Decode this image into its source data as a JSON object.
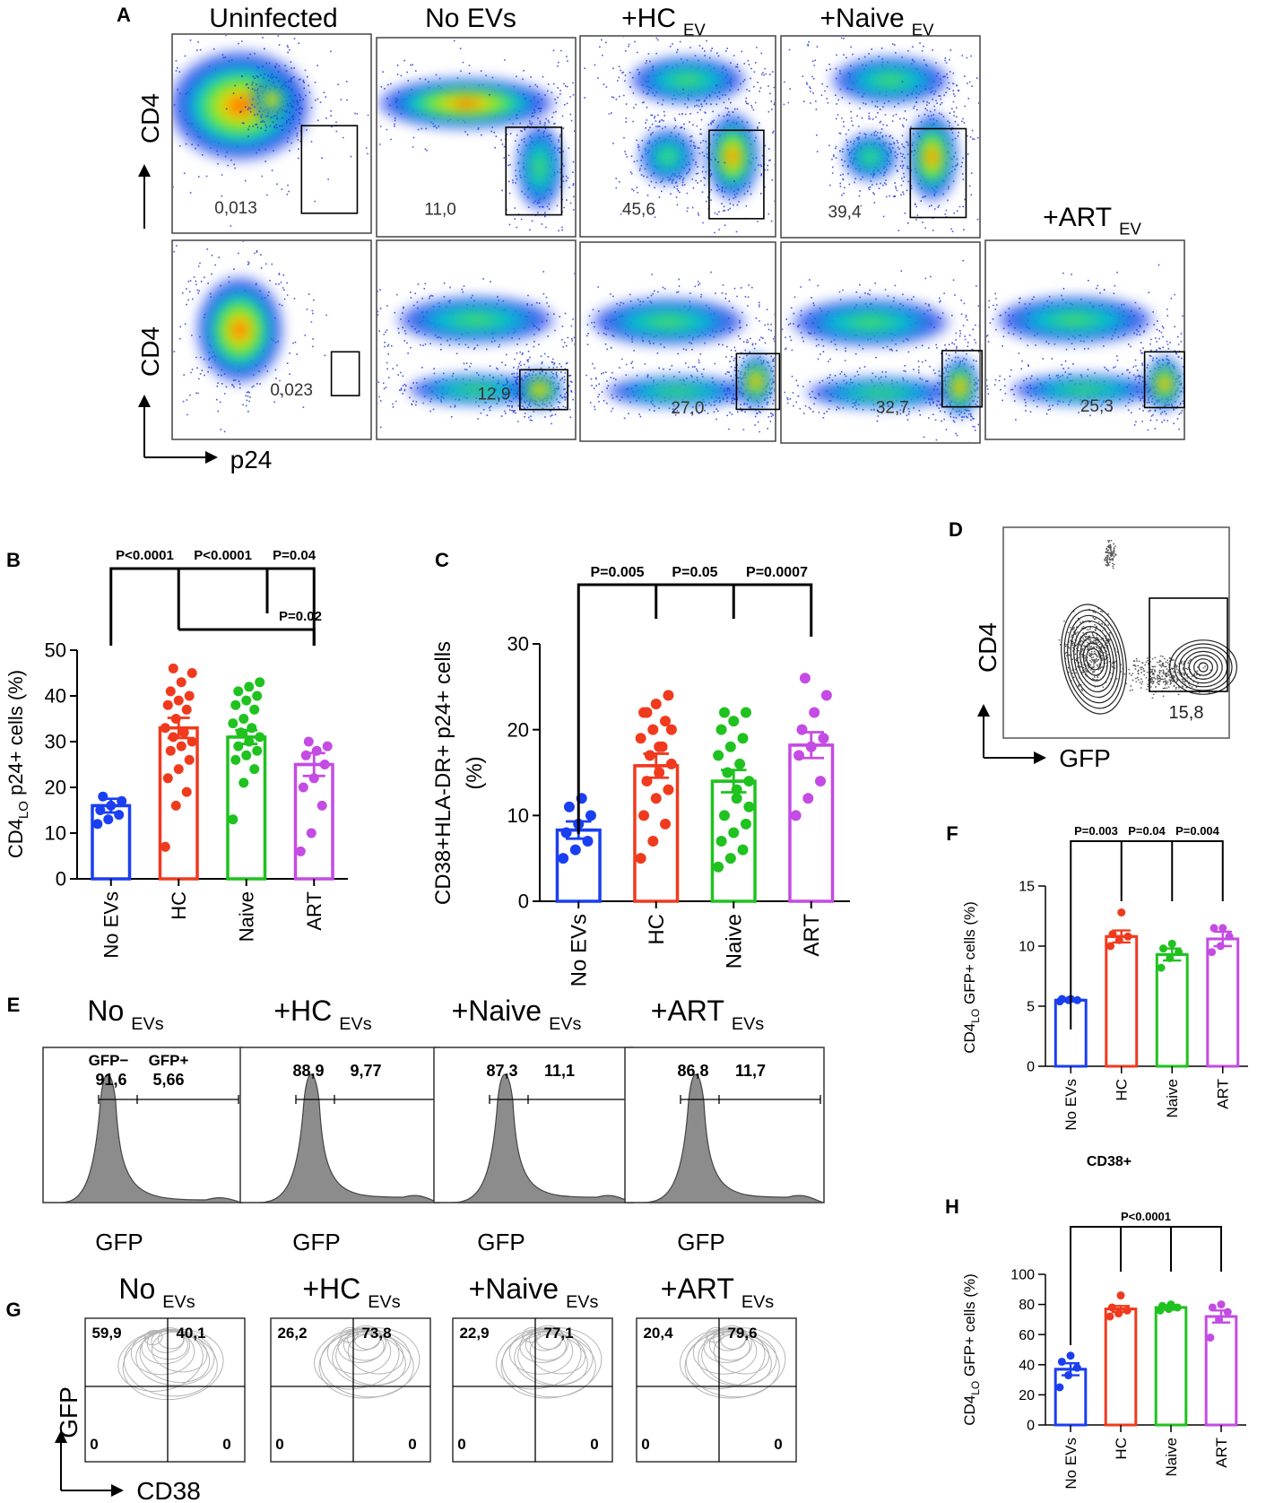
{
  "figure": {
    "panel_letters": [
      "A",
      "B",
      "C",
      "D",
      "E",
      "F",
      "G",
      "H"
    ],
    "colors": {
      "no_evs": "#1a3ff0",
      "hc": "#f03a1e",
      "naive": "#1fc21f",
      "art": "#c44be3",
      "gray": "#7a7a7a",
      "black": "#000000"
    }
  },
  "chart_data": [
    {
      "panel": "A",
      "type": "scatter",
      "axes": {
        "y": "CD4",
        "x": "p24"
      },
      "top_titles": [
        {
          "main": "Uninfected",
          "sub": ""
        },
        {
          "main": "No EVs",
          "sub": ""
        },
        {
          "main": "+HC",
          "sub": "EV"
        },
        {
          "main": "+Naive",
          "sub": "EV"
        },
        {
          "main": "+ART",
          "sub": "EV"
        }
      ],
      "row1_values": [
        "0,013",
        "11,0",
        "45,6",
        "39,4"
      ],
      "row2_values": [
        "0,023",
        "12,9",
        "27,0",
        "32,7",
        "25,3"
      ]
    },
    {
      "panel": "B",
      "type": "bar",
      "ylabel_pre": "CD4",
      "ylabel_sub": "LO",
      "ylabel_post": " p24+ cells (%)",
      "ylim": [
        0,
        50
      ],
      "yticks": [
        "0",
        "10",
        "20",
        "30",
        "40",
        "50"
      ],
      "categories": [
        "No EVs",
        "HC",
        "Naive",
        "ART"
      ],
      "means": [
        16,
        33,
        31,
        25
      ],
      "sem": [
        1.5,
        2.2,
        1.5,
        2.5
      ],
      "points": [
        [
          12,
          13,
          14,
          15,
          16,
          17,
          18
        ],
        [
          7,
          16,
          19,
          22,
          24,
          26,
          28,
          29,
          30,
          31,
          32,
          33,
          35,
          37,
          38,
          39,
          40,
          41,
          43,
          45,
          46
        ],
        [
          13,
          21,
          24,
          26,
          27,
          28,
          29,
          30,
          31,
          32,
          33,
          34,
          35,
          37,
          38,
          39,
          40,
          41,
          42,
          43
        ],
        [
          6,
          10,
          16,
          20,
          22,
          25,
          27,
          28,
          29,
          30
        ]
      ],
      "comparisons": [
        "P<0.0001",
        "P<0.0001",
        "P=0.04",
        "P=0.02"
      ]
    },
    {
      "panel": "C",
      "type": "bar",
      "ylabel_line1": "CD38+HLA-DR+ p24+ cells",
      "ylabel_line2": "(%)",
      "ylim": [
        0,
        30
      ],
      "yticks": [
        "0",
        "10",
        "20",
        "30"
      ],
      "categories": [
        "No EVs",
        "HC",
        "Naive",
        "ART"
      ],
      "means": [
        8.3,
        15.8,
        14,
        18.2
      ],
      "sem": [
        1,
        1.4,
        1.3,
        1.5
      ],
      "points": [
        [
          5,
          6,
          7,
          8,
          9,
          10,
          11,
          12
        ],
        [
          5,
          7,
          9,
          10,
          12,
          13,
          14,
          15,
          16,
          17,
          18,
          19,
          20,
          21,
          22,
          23,
          24,
          22,
          18,
          20
        ],
        [
          4,
          5,
          6,
          7,
          8,
          9,
          10,
          12,
          14,
          15,
          16,
          17,
          18,
          19,
          20,
          21,
          22,
          22,
          13,
          11
        ],
        [
          10,
          12,
          14,
          17,
          18,
          19,
          20,
          22,
          24,
          26
        ]
      ],
      "comparisons": [
        "P=0.005",
        "P=0.05",
        "P=0.0007"
      ]
    },
    {
      "panel": "D",
      "type": "scatter",
      "axes": {
        "y": "CD4",
        "x": "GFP"
      },
      "gate_value": "15,8"
    },
    {
      "panel": "E",
      "type": "area",
      "xlabel": "GFP",
      "titles": [
        {
          "main": "No",
          "sub": "EVs"
        },
        {
          "main": "+HC",
          "sub": "EVs"
        },
        {
          "main": "+Naive",
          "sub": "EVs"
        },
        {
          "main": "+ART",
          "sub": "EVs"
        }
      ],
      "gate_labels": {
        "neg": "GFP−",
        "pos": "GFP+"
      },
      "gfp_neg": [
        "91,6",
        "88,9",
        "87,3",
        "86,8"
      ],
      "gfp_pos": [
        "5,66",
        "9,77",
        "11,1",
        "11,7"
      ]
    },
    {
      "panel": "F",
      "type": "bar",
      "ylabel_pre": "CD4",
      "ylabel_sub": "LO",
      "ylabel_post": " GFP+ cells (%)",
      "ylim": [
        0,
        15
      ],
      "yticks": [
        "0",
        "5",
        "10",
        "15"
      ],
      "categories": [
        "No EVs",
        "HC",
        "Naive",
        "ART"
      ],
      "means": [
        5.5,
        10.8,
        9.3,
        10.6
      ],
      "sem": [
        0.1,
        0.5,
        0.5,
        0.6
      ],
      "points": [
        [
          5.4,
          5.5,
          5.5,
          5.6,
          5.6
        ],
        [
          10.0,
          10.5,
          10.8,
          11.0,
          12.8
        ],
        [
          8.2,
          9.0,
          9.5,
          9.8,
          10.2
        ],
        [
          9.5,
          10.0,
          10.8,
          11.5,
          11.5
        ]
      ],
      "comparisons": [
        "P=0.003",
        "P=0.04",
        "P=0.004"
      ]
    },
    {
      "panel": "G",
      "type": "scatter",
      "axes": {
        "y": "GFP",
        "x": "CD38"
      },
      "titles": [
        {
          "main": "No",
          "sub": "EVs"
        },
        {
          "main": "+HC",
          "sub": "EVs"
        },
        {
          "main": "+Naive",
          "sub": "EVs"
        },
        {
          "main": "+ART",
          "sub": "EVs"
        }
      ],
      "quadrants": [
        {
          "ul": "59,9",
          "ur": "40,1",
          "ll": "0",
          "lr": "0"
        },
        {
          "ul": "26,2",
          "ur": "73,8",
          "ll": "0",
          "lr": "0"
        },
        {
          "ul": "22,9",
          "ur": "77,1",
          "ll": "0",
          "lr": "0"
        },
        {
          "ul": "20,4",
          "ur": "79,6",
          "ll": "0",
          "lr": "0"
        }
      ]
    },
    {
      "panel": "H",
      "type": "bar",
      "title": "CD38+",
      "ylabel_pre": "CD4",
      "ylabel_sub": "LO",
      "ylabel_post": " GFP+ cells (%)",
      "ylim": [
        0,
        100
      ],
      "yticks": [
        "0",
        "20",
        "40",
        "60",
        "80",
        "100"
      ],
      "categories": [
        "No EVs",
        "HC",
        "Naive",
        "ART"
      ],
      "means": [
        37,
        77,
        78,
        72
      ],
      "sem": [
        4,
        2,
        1.5,
        4
      ],
      "points": [
        [
          25,
          33,
          38,
          42,
          46
        ],
        [
          72,
          74,
          76,
          78,
          86
        ],
        [
          76,
          77,
          78,
          79,
          80
        ],
        [
          58,
          70,
          75,
          78,
          80
        ]
      ],
      "comparisons": [
        "P<0.0001"
      ]
    }
  ]
}
